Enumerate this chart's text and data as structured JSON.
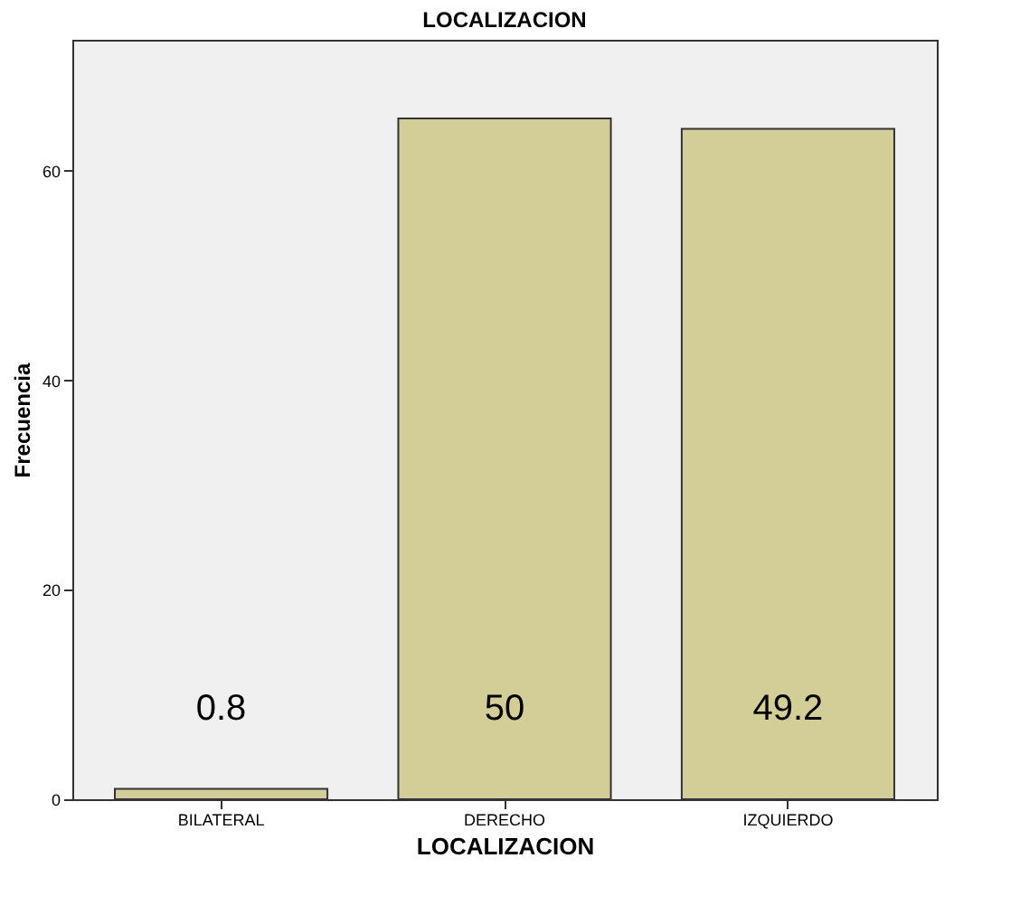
{
  "chart_data": {
    "type": "bar",
    "title": "LOCALIZACION",
    "xlabel": "LOCALIZACION",
    "ylabel": "Frecuencia",
    "categories": [
      "BILATERAL",
      "DERECHO",
      "IZQUIERDO"
    ],
    "values": [
      1,
      65,
      64
    ],
    "color": "#d3ce97",
    "ylim": [
      0,
      72.5
    ],
    "yticks": [
      0,
      20,
      40,
      60
    ],
    "grid": false,
    "annotations": [
      "0.8",
      "50",
      "49.2"
    ]
  }
}
